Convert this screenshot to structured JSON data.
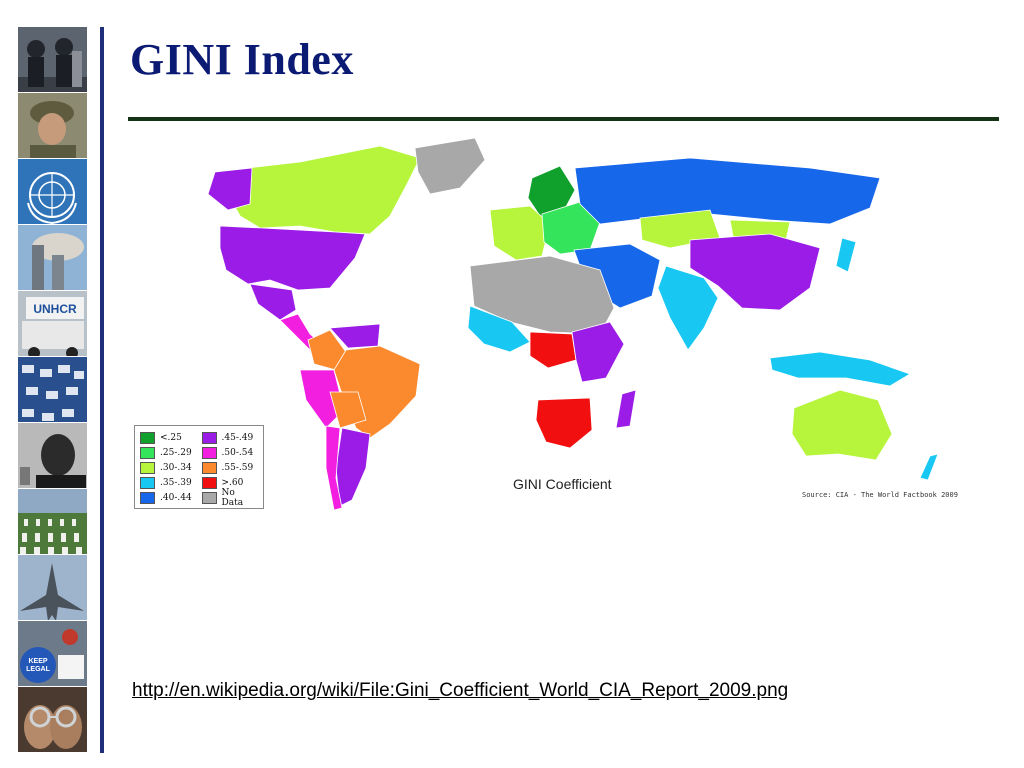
{
  "slide": {
    "title": "GINI Index",
    "link_text": "http://en.wikipedia.org/wiki/File:Gini_Coefficient_World_CIA_Report_2009.png"
  },
  "map": {
    "caption": "GINI Coefficient",
    "source": "Source: CIA - The World Factbook 2009",
    "legend": [
      {
        "label": "<.25",
        "color": "#10a02c"
      },
      {
        "label": ".45-.49",
        "color": "#9b1ce6"
      },
      {
        "label": ".25-.29",
        "color": "#34e45a"
      },
      {
        "label": ".50-.54",
        "color": "#f21ee0"
      },
      {
        "label": ".30-.34",
        "color": "#b6f53c"
      },
      {
        "label": ".55-.59",
        "color": "#fb8a2e"
      },
      {
        "label": ".35-.39",
        "color": "#19c8f2"
      },
      {
        "label": ">.60",
        "color": "#f20f0f"
      },
      {
        "label": ".40-.44",
        "color": "#1767ea"
      },
      {
        "label": "No Data",
        "color": "#a8a8a8"
      }
    ],
    "region_colors": {
      "canada": "#b6f53c",
      "alaska": "#9b1ce6",
      "usa": "#9b1ce6",
      "greenland": "#a8a8a8",
      "mexico": "#9b1ce6",
      "central_america": "#f21ee0",
      "venezuela": "#9b1ce6",
      "colombia": "#fb8a2e",
      "brazil": "#fb8a2e",
      "peru": "#f21ee0",
      "bolivia": "#fb8a2e",
      "argentina": "#9b1ce6",
      "chile": "#f21ee0",
      "scandinavia": "#10a02c",
      "west_europe": "#b6f53c",
      "east_europe": "#34e45a",
      "russia": "#1767ea",
      "kazakhstan": "#b6f53c",
      "middle_east": "#1767ea",
      "china": "#9b1ce6",
      "india": "#19c8f2",
      "mongolia": "#b6f53c",
      "sahara": "#a8a8a8",
      "west_africa": "#19c8f2",
      "central_africa": "#f20f0f",
      "east_africa": "#9b1ce6",
      "southern_africa": "#f20f0f",
      "madagascar": "#9b1ce6",
      "indonesia": "#19c8f2",
      "australia": "#b6f53c",
      "new_zealand": "#19c8f2",
      "japan": "#19c8f2"
    },
    "photo_tile_icons": [
      "riot-police-photo",
      "soldier-photo",
      "un-emblem-photo",
      "twin-towers-photo",
      "unhcr-truck-photo",
      "refugee-crowd-photo",
      "mlk-photo",
      "cemetery-photo",
      "fighter-jet-photo",
      "protest-sign-photo",
      "handcuffs-photo"
    ]
  }
}
